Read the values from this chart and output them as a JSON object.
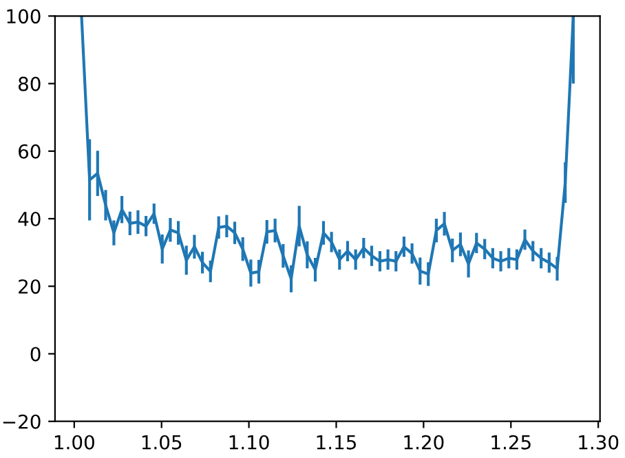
{
  "chart_data": {
    "type": "line",
    "x": [
      1.0042,
      1.0088,
      1.0134,
      1.018,
      1.0227,
      1.0273,
      1.0319,
      1.0365,
      1.0411,
      1.0457,
      1.0504,
      1.055,
      1.0596,
      1.0642,
      1.0688,
      1.0734,
      1.078,
      1.0827,
      1.0873,
      1.0919,
      1.0965,
      1.1011,
      1.1057,
      1.1103,
      1.115,
      1.1196,
      1.1242,
      1.1288,
      1.1334,
      1.138,
      1.1427,
      1.1473,
      1.1519,
      1.1565,
      1.1611,
      1.1657,
      1.1703,
      1.175,
      1.1796,
      1.1842,
      1.1888,
      1.1934,
      1.198,
      1.2027,
      1.2073,
      1.2119,
      1.2165,
      1.2211,
      1.2257,
      1.2303,
      1.235,
      1.2396,
      1.2442,
      1.2488,
      1.2534,
      1.258,
      1.2626,
      1.2673,
      1.2719,
      1.2765,
      1.2811,
      1.2857
    ],
    "series": [
      {
        "color": "#1f77b4",
        "values": [
          100,
          51.5,
          53.4,
          44,
          35.8,
          42.7,
          38.6,
          39,
          37.8,
          41.5,
          31,
          36.7,
          35.8,
          27.7,
          31.7,
          27,
          24.4,
          37.4,
          37.8,
          35.8,
          31,
          23.9,
          24.3,
          36.1,
          36.5,
          29,
          22.2,
          37.8,
          29.3,
          24.9,
          35.8,
          33.1,
          27.9,
          30.4,
          27.9,
          31.3,
          29,
          27.4,
          27.9,
          27.4,
          31.7,
          29.7,
          24.5,
          23.6,
          36.5,
          38.5,
          30.6,
          32.4,
          26.6,
          32.8,
          31,
          28.3,
          27.4,
          28.3,
          27.9,
          33.8,
          30.4,
          28.3,
          27,
          25.2,
          50.7,
          100
        ],
        "errors": [
          null,
          12,
          6.7,
          4.5,
          3.7,
          4,
          3.5,
          3.5,
          3,
          3,
          4.3,
          3.5,
          3.5,
          4.3,
          3.5,
          3.2,
          3.2,
          3.3,
          3.3,
          3.3,
          3.5,
          4,
          3.5,
          3.5,
          3.5,
          3.5,
          4,
          6,
          4,
          3.5,
          3.5,
          3,
          3,
          3,
          3,
          3,
          3,
          3,
          3,
          3,
          3,
          3,
          4,
          3.5,
          3.5,
          3.5,
          3.5,
          3.5,
          4,
          3,
          3,
          3,
          3,
          3,
          3,
          3,
          3,
          3,
          3,
          3.5,
          6,
          [
            80,
            100
          ]
        ]
      }
    ],
    "xlim": [
      0.989,
      1.301
    ],
    "ylim": [
      -20,
      100
    ],
    "xticks": [
      {
        "value": 1.0,
        "label": "1.00"
      },
      {
        "value": 1.05,
        "label": "1.05"
      },
      {
        "value": 1.1,
        "label": "1.10"
      },
      {
        "value": 1.15,
        "label": "1.15"
      },
      {
        "value": 1.2,
        "label": "1.20"
      },
      {
        "value": 1.25,
        "label": "1.25"
      },
      {
        "value": 1.3,
        "label": "1.30"
      }
    ],
    "yticks": [
      -20,
      0,
      20,
      40,
      60,
      80,
      100
    ],
    "grid": false,
    "legend": false
  }
}
